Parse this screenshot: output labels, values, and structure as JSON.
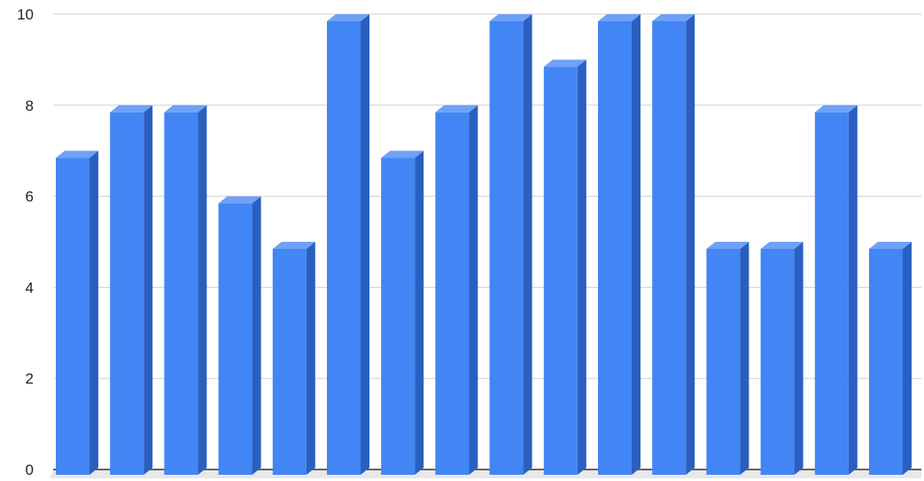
{
  "chart_data": {
    "type": "bar",
    "style": "3d-column",
    "values": [
      7,
      8,
      8,
      6,
      5,
      10,
      7,
      8,
      10,
      9,
      10,
      10,
      5,
      5,
      8,
      5
    ],
    "ylim": [
      0,
      10
    ],
    "yticks": [
      0,
      2,
      4,
      6,
      8,
      10
    ],
    "ytick_labels": [
      "0",
      "2",
      "4",
      "6",
      "8",
      "10"
    ],
    "grid": true,
    "legend": "none",
    "colors": {
      "bar_front": "#4285f4",
      "bar_side": "#2a5fbf",
      "bar_top": "#6ea1f7",
      "floor": "#e8e8e8"
    }
  }
}
